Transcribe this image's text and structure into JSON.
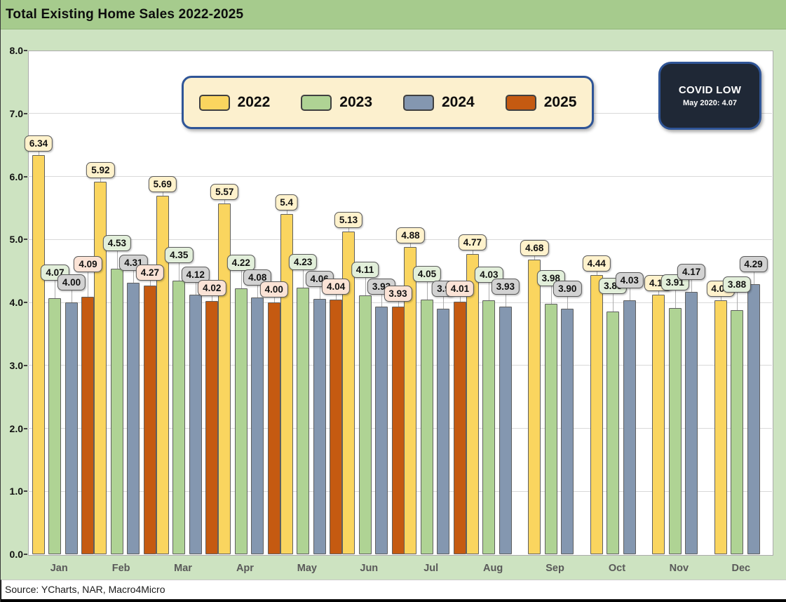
{
  "header": {
    "title": "Total Existing Home Sales 2022-2025"
  },
  "annotation": {
    "title": "COVID LOW",
    "detail": "May 2020: 4.07"
  },
  "footer": {
    "source": "Source: YCharts, NAR, Macro4Micro"
  },
  "colors": {
    "title_band": "#A6CB8D",
    "page_background": "#CDE3C1",
    "plot_background": "#FFFFFF",
    "gridline": "#D9D9D9",
    "legend_background": "#FCF0CE",
    "legend_border": "#2F5597",
    "annotation_background": "#1F2836",
    "annotation_border": "#2F5597"
  },
  "chart_data": {
    "type": "bar",
    "title": "Total Existing Home Sales 2022-2025",
    "xlabel": "",
    "ylabel": "",
    "ylim": [
      0,
      8
    ],
    "ytick_labels": [
      "0.0",
      "1.0",
      "2.0",
      "3.0",
      "4.0",
      "5.0",
      "6.0",
      "7.0",
      "8.0"
    ],
    "grid": true,
    "legend_position": "top",
    "categories": [
      "Jan",
      "Feb",
      "Mar",
      "Apr",
      "May",
      "Jun",
      "Jul",
      "Aug",
      "Sep",
      "Oct",
      "Nov",
      "Dec"
    ],
    "series": [
      {
        "name": "2022",
        "color": "#FAD55F",
        "label_bg": "#FFF2CC",
        "values": [
          6.34,
          5.92,
          5.69,
          5.57,
          5.4,
          5.13,
          4.88,
          4.77,
          4.68,
          4.44,
          4.12,
          4.03
        ],
        "labels": [
          "6.34",
          "5.92",
          "5.69",
          "5.57",
          "5.4",
          "5.13",
          "4.88",
          "4.77",
          "4.68",
          "4.44",
          "4.12",
          "4.03"
        ]
      },
      {
        "name": "2023",
        "color": "#AFD394",
        "label_bg": "#E2EFDA",
        "values": [
          4.07,
          4.53,
          4.35,
          4.22,
          4.23,
          4.11,
          4.05,
          4.03,
          3.98,
          3.85,
          3.91,
          3.88
        ],
        "labels": [
          "4.07",
          "4.53",
          "4.35",
          "4.22",
          "4.23",
          "4.11",
          "4.05",
          "4.03",
          "3.98",
          "3.85",
          "3.91",
          "3.88"
        ]
      },
      {
        "name": "2024",
        "color": "#8497B0",
        "label_bg": "#D2D2D2",
        "values": [
          4.0,
          4.31,
          4.12,
          4.08,
          4.06,
          3.93,
          3.9,
          3.93,
          3.9,
          4.03,
          4.17,
          4.29
        ],
        "labels": [
          "4.00",
          "4.31",
          "4.12",
          "4.08",
          "4.06",
          "3.93",
          "3.9",
          "3.93",
          "3.90",
          "4.03",
          "4.17",
          "4.29"
        ]
      },
      {
        "name": "2025",
        "color": "#C55A11",
        "label_bg": "#FBE3D6",
        "values": [
          4.09,
          4.27,
          4.02,
          4.0,
          4.04,
          3.93,
          4.01,
          null,
          null,
          null,
          null,
          null
        ],
        "labels": [
          "4.09",
          "4.27",
          "4.02",
          "4.00",
          "4.04",
          "3.93",
          "4.01",
          null,
          null,
          null,
          null,
          null
        ]
      }
    ]
  }
}
